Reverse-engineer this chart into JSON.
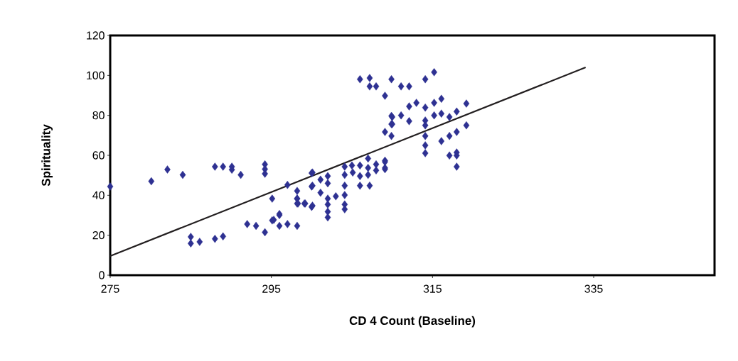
{
  "chart_data": {
    "type": "scatter",
    "xlabel": "CD 4 Count (Baseline)",
    "ylabel": "Spirituality",
    "xlim": [
      275,
      350
    ],
    "xticks": [
      275,
      295,
      315,
      335
    ],
    "ylim": [
      0,
      120
    ],
    "yticks": [
      0,
      20,
      40,
      60,
      80,
      100,
      120
    ],
    "grid": false,
    "marker": "diamond",
    "series": [
      {
        "color": "#2e3192",
        "x": [
          275,
          280.1,
          282.1,
          284,
          288,
          289,
          290.1,
          290.1,
          291.2,
          294.2,
          294.2,
          294.2,
          285,
          285,
          286.1,
          288,
          289,
          292,
          293.1,
          294.2,
          295.1,
          295.1,
          296,
          296,
          297,
          298.2,
          297,
          298.2,
          298.2,
          298.2,
          299.1,
          300,
          300,
          300,
          295.3,
          296,
          298.2,
          298.3,
          299.2,
          300.1,
          300.1,
          300.1,
          301.1,
          301.1,
          302,
          302,
          302,
          302,
          302,
          302,
          303,
          304.1,
          304.1,
          304.1,
          304.1,
          304.1,
          304.1,
          305,
          305.1,
          306,
          306,
          306,
          307,
          307,
          307,
          307.2,
          308,
          308,
          309.1,
          309.1,
          306,
          307.2,
          307.2,
          308,
          309.1,
          309.9,
          309.9,
          309.9,
          309.1,
          309.9,
          311.1,
          312.1,
          312.1,
          313,
          314.1,
          314.1,
          315.2,
          315.2,
          316.1,
          310,
          311.1,
          310,
          312.1,
          314.1,
          314.1,
          314.1,
          314.1,
          314.1,
          315.2,
          316.1,
          317.1,
          318,
          319.2,
          319.2,
          318,
          317.1,
          316.1,
          317.1,
          318,
          318,
          318,
          309.1,
          309.1
        ],
        "values": [
          44.4,
          47,
          52.9,
          50.2,
          54.3,
          54.3,
          54.3,
          52.8,
          50.2,
          55.5,
          53.1,
          50.8,
          19.2,
          15.9,
          16.7,
          18.2,
          19.4,
          25.6,
          24.7,
          21.5,
          38.3,
          27.4,
          30.1,
          24.7,
          25.6,
          24.7,
          45.2,
          42.2,
          38.3,
          35.9,
          35.9,
          34.2,
          44.4,
          51.1,
          27.7,
          30.6,
          38.3,
          35.9,
          35.9,
          34.8,
          51.4,
          44.8,
          47.8,
          41.3,
          49.6,
          46,
          38.3,
          35.4,
          31.8,
          28.9,
          39.5,
          44.8,
          40.1,
          35.4,
          33,
          54.3,
          50.2,
          54.9,
          51.4,
          54.9,
          49.6,
          44.8,
          58.4,
          53.7,
          50.2,
          44.8,
          55.5,
          52.5,
          57.3,
          53.7,
          98.1,
          98.7,
          94.5,
          94.5,
          89.8,
          98.1,
          79.7,
          75.6,
          71.7,
          69.7,
          94.5,
          94.5,
          84.5,
          86.3,
          83.9,
          98.1,
          101.6,
          86.3,
          88.3,
          79.2,
          80,
          75.6,
          77.1,
          77.4,
          75,
          69.7,
          65,
          61.1,
          80,
          80.9,
          79.2,
          81.9,
          85.9,
          75,
          71.7,
          69.7,
          67.1,
          59.9,
          61.4,
          59.9,
          54.3,
          56.7,
          53.1
        ]
      },
      {
        "type": "line",
        "color": "#231f20",
        "line_style": "solid",
        "marker": "none",
        "x": [
          275,
          334
        ],
        "values": [
          9.6,
          104
        ]
      }
    ]
  }
}
